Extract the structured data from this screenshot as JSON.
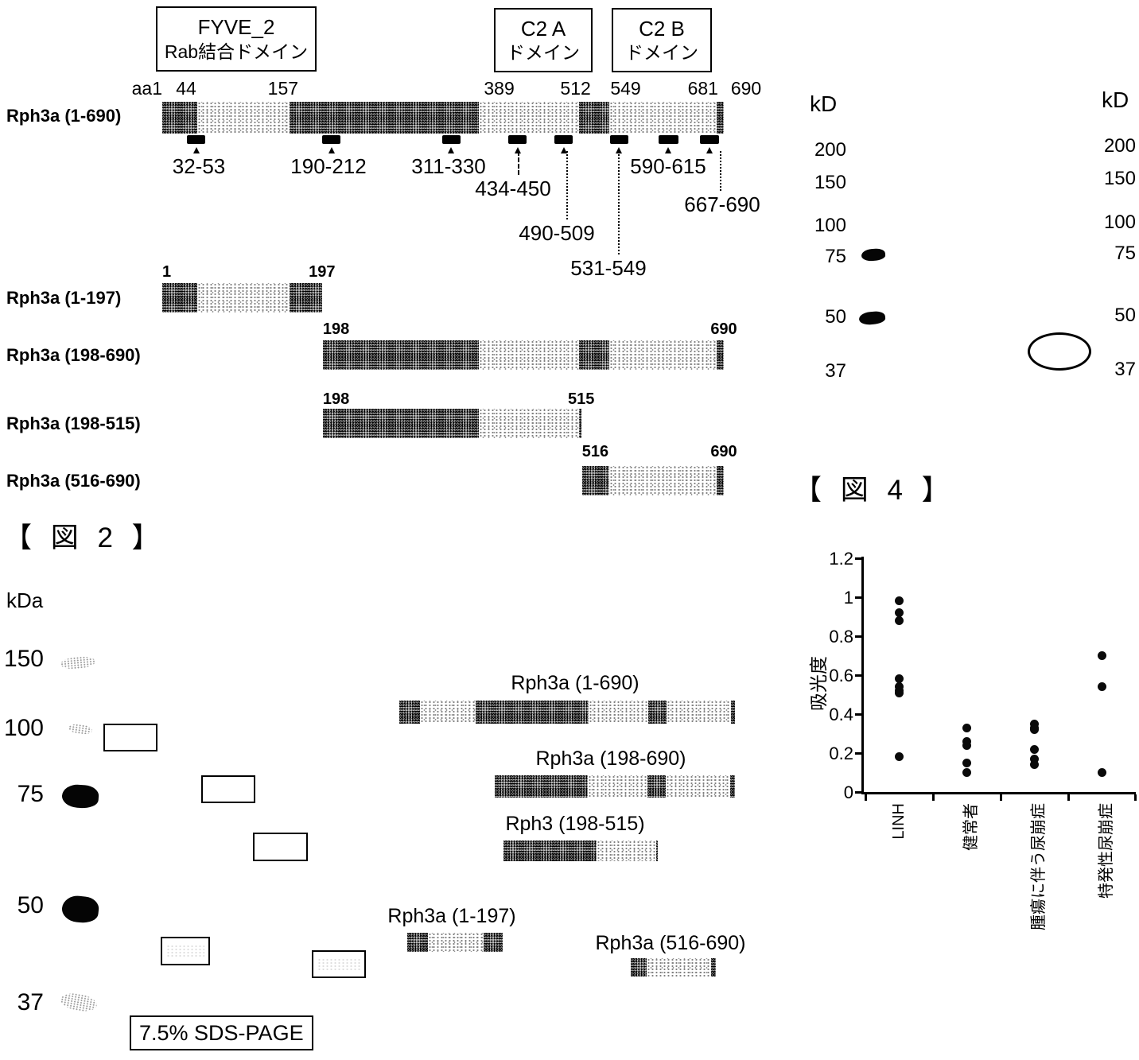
{
  "colors": {
    "ink": "#000000",
    "background": "#ffffff"
  },
  "fig2": {
    "label": "【 図 2 】",
    "map": {
      "domain_boxes": [
        {
          "line1": "FYVE_2",
          "line2": "Rab結合ドメイン"
        },
        {
          "line1": "C2 A",
          "line2": "ドメイン"
        },
        {
          "line1": "C2 B",
          "line2": "ドメイン"
        }
      ],
      "aa_ticks": [
        {
          "label": "aa1",
          "aa": 1
        },
        {
          "label": "44",
          "aa": 44
        },
        {
          "label": "157",
          "aa": 157
        },
        {
          "label": "389",
          "aa": 389
        },
        {
          "label": "512",
          "aa": 512
        },
        {
          "label": "549",
          "aa": 549
        },
        {
          "label": "681",
          "aa": 681
        },
        {
          "label": "690",
          "aa": 690
        }
      ],
      "segments": [
        {
          "start": 1,
          "end": 44,
          "shade": "dark"
        },
        {
          "start": 44,
          "end": 157,
          "shade": "light"
        },
        {
          "start": 157,
          "end": 389,
          "shade": "dark"
        },
        {
          "start": 389,
          "end": 512,
          "shade": "light"
        },
        {
          "start": 512,
          "end": 549,
          "shade": "dark"
        },
        {
          "start": 549,
          "end": 681,
          "shade": "light"
        },
        {
          "start": 681,
          "end": 690,
          "shade": "dark"
        }
      ],
      "constructs": [
        {
          "label": "Rph3a (1-690)",
          "start": 1,
          "end": 690,
          "start_tick": "",
          "end_tick": ""
        },
        {
          "label": "Rph3a (1-197)",
          "start": 1,
          "end": 197,
          "start_tick": "1",
          "end_tick": "197"
        },
        {
          "label": "Rph3a (198-690)",
          "start": 198,
          "end": 690,
          "start_tick": "198",
          "end_tick": "690"
        },
        {
          "label": "Rph3a (198-515)",
          "start": 198,
          "end": 515,
          "start_tick": "198",
          "end_tick": "515"
        },
        {
          "label": "Rph3a (516-690)",
          "start": 516,
          "end": 690,
          "start_tick": "516",
          "end_tick": "690"
        }
      ],
      "epitopes": [
        {
          "label": "32-53",
          "start": 32,
          "end": 53
        },
        {
          "label": "190-212",
          "start": 190,
          "end": 212
        },
        {
          "label": "311-330",
          "start": 311,
          "end": 330
        },
        {
          "label": "434-450",
          "start": 434,
          "end": 450
        },
        {
          "label": "490-509",
          "start": 490,
          "end": 509
        },
        {
          "label": "531-549",
          "start": 531,
          "end": 549
        },
        {
          "label": "590-615",
          "start": 590,
          "end": 615
        },
        {
          "label": "667-690",
          "start": 667,
          "end": 690
        }
      ]
    },
    "gel": {
      "unit": "kDa",
      "markers": [
        "150",
        "100",
        "75",
        "50",
        "37"
      ],
      "caption": "7.5% SDS-PAGE",
      "bands": [
        {
          "label": "Rph3a (1-690)",
          "start": 1,
          "end": 690
        },
        {
          "label": "Rph3a (198-690)",
          "start": 198,
          "end": 690
        },
        {
          "label": "Rph3 (198-515)",
          "start": 198,
          "end": 515
        },
        {
          "label": "Rph3a (1-197)",
          "start": 1,
          "end": 197
        },
        {
          "label": "Rph3a (516-690)",
          "start": 516,
          "end": 690
        }
      ]
    }
  },
  "blot": {
    "unit_left": "kD",
    "unit_right": "kD",
    "markers_left": [
      "200",
      "150",
      "100",
      "75",
      "50",
      "37"
    ],
    "markers_right": [
      "200",
      "150",
      "100",
      "75",
      "50",
      "37"
    ]
  },
  "fig4": {
    "label": "【 図 4 】"
  },
  "chart_data": {
    "type": "scatter",
    "title": "",
    "xlabel": "",
    "ylabel": "吸光度",
    "ylim": [
      0,
      1.2
    ],
    "yticks": [
      0,
      0.2,
      0.4,
      0.6,
      0.8,
      1,
      1.2
    ],
    "ytick_labels": [
      "0",
      "0.2",
      "0.4",
      "0.6",
      "0.8",
      "1",
      "1.2"
    ],
    "grid": false,
    "legend": false,
    "categories": [
      "LINH",
      "健常者",
      "腫瘍に伴う尿崩症",
      "特発性尿崩症"
    ],
    "series": [
      {
        "name": "LINH",
        "values": [
          0.98,
          0.92,
          0.88,
          0.58,
          0.54,
          0.52,
          0.51,
          0.18
        ]
      },
      {
        "name": "健常者",
        "values": [
          0.33,
          0.26,
          0.24,
          0.15,
          0.1
        ]
      },
      {
        "name": "腫瘍に伴う尿崩症",
        "values": [
          0.35,
          0.33,
          0.32,
          0.22,
          0.17,
          0.14
        ]
      },
      {
        "name": "特発性尿崩症",
        "values": [
          0.7,
          0.54,
          0.1
        ]
      }
    ]
  }
}
